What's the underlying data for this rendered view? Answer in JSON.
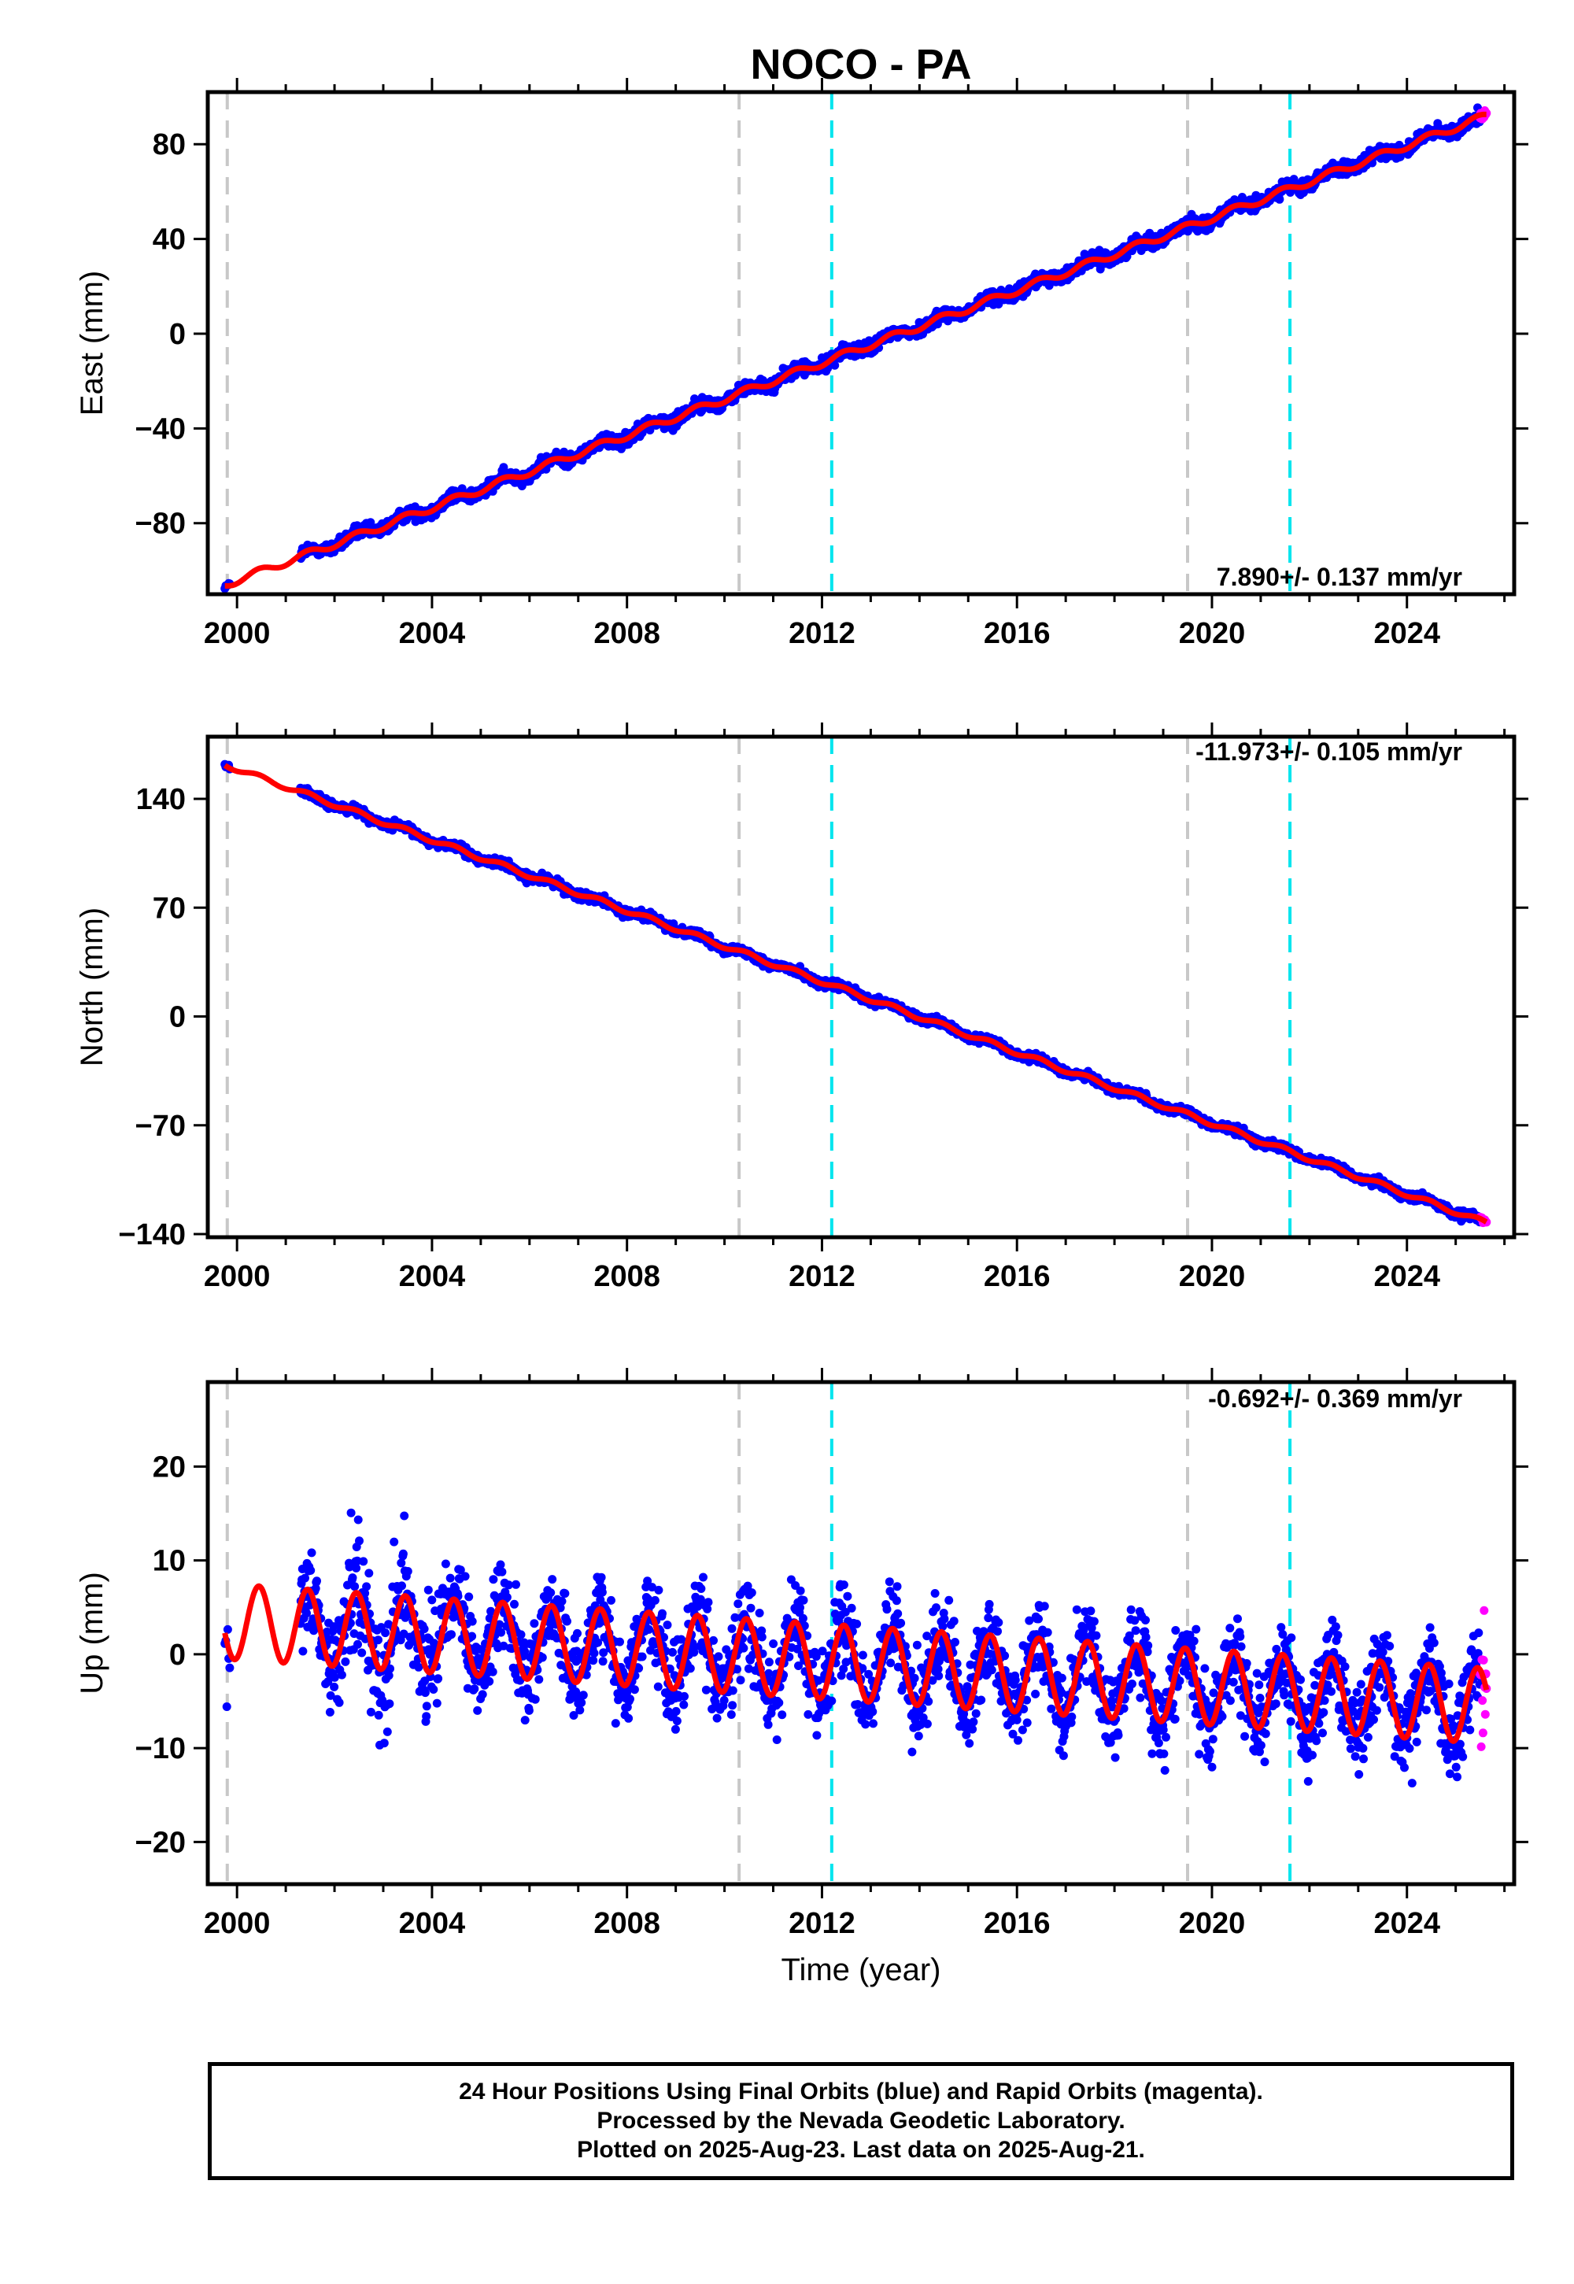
{
  "title": "NOCO - PA",
  "xlabel": "Time (year)",
  "caption": {
    "line1": "24 Hour Positions Using Final Orbits (blue) and Rapid Orbits (magenta).",
    "line2": "Processed by the Nevada Geodetic Laboratory.",
    "line3": "Plotted on 2025-Aug-23. Last data on 2025-Aug-21."
  },
  "colors": {
    "final_orbits": "#0000ff",
    "rapid_orbits": "#ff00ff",
    "model": "#ff0000",
    "equipment_change": "#c8c8c8",
    "earthquake": "#00e5ee"
  },
  "chart_data": [
    {
      "type": "scatter",
      "component": "East",
      "ylabel": "East (mm)",
      "xlim": [
        1999.4,
        2026.2
      ],
      "ylim": [
        -110,
        102
      ],
      "xticks": [
        2000,
        2004,
        2008,
        2012,
        2016,
        2020,
        2024
      ],
      "yticks": [
        -80,
        -40,
        0,
        40,
        80
      ],
      "rate_label": "7.890+/- 0.137 mm/yr",
      "rate": 7.89,
      "start_value": -106,
      "end_value": 92,
      "seasonal_amplitude": 1.5,
      "noise": 2.0
    },
    {
      "type": "scatter",
      "component": "North",
      "ylabel": "North (mm)",
      "xlim": [
        1999.4,
        2026.2
      ],
      "ylim": [
        -142,
        180
      ],
      "xticks": [
        2000,
        2004,
        2008,
        2012,
        2016,
        2020,
        2024
      ],
      "yticks": [
        -140,
        -70,
        0,
        70,
        140
      ],
      "rate_label": "-11.973+/- 0.105 mm/yr",
      "rate": -11.973,
      "start_value": 162,
      "end_value": -133,
      "seasonal_amplitude": 1.5,
      "noise": 2.0
    },
    {
      "type": "scatter",
      "component": "Up",
      "ylabel": "Up (mm)",
      "xlim": [
        1999.4,
        2026.2
      ],
      "ylim": [
        -24.5,
        29
      ],
      "xticks": [
        2000,
        2004,
        2008,
        2012,
        2016,
        2020,
        2024
      ],
      "yticks": [
        -20,
        -10,
        0,
        10,
        20
      ],
      "rate_label": "-0.692+/- 0.369 mm/yr",
      "rate": -0.692,
      "start_value": 3.5,
      "end_value": -5.5,
      "seasonal_amplitude": 4.0,
      "noise": 3.2
    }
  ],
  "equipment_changes": [
    1999.8,
    2010.3,
    2019.5
  ],
  "earthquakes": [
    2012.2,
    2021.6
  ],
  "data_span": {
    "first_year": 1999.75,
    "data_gap_end": 2001.3,
    "last_final": 2025.5,
    "last_data": 2025.64
  }
}
